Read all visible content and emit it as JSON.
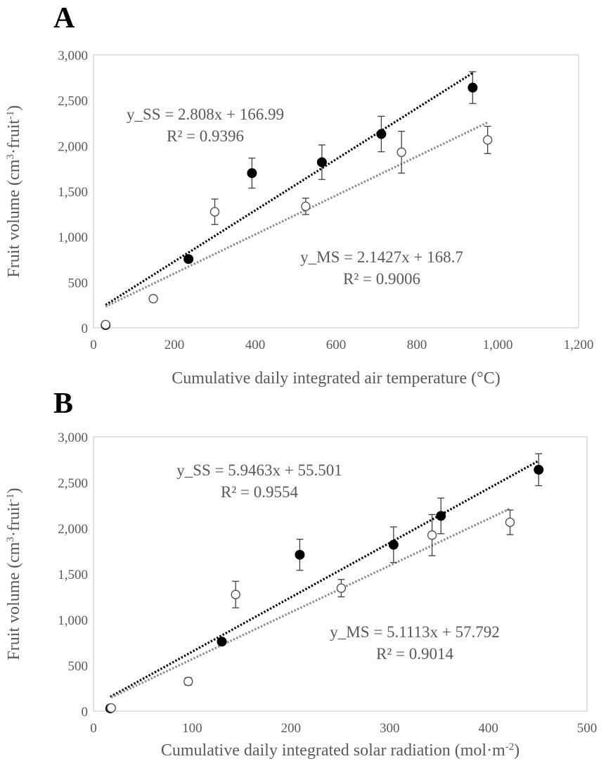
{
  "colors": {
    "ss": "#000000",
    "ms": "#8c8c8c",
    "axis": "#d9d9d9",
    "text": "#595959"
  },
  "chart_data": [
    {
      "panel": "A",
      "type": "scatter",
      "xlabel": "Cumulative daily integrated air temperature (°C)",
      "ylabel_main": "Fruit volume (cm",
      "ylabel_sup1": "3",
      "ylabel_mid": "·fruit",
      "ylabel_sup2": "-1",
      "ylabel_end": ")",
      "xlim": [
        0,
        1200
      ],
      "ylim": [
        0,
        3000
      ],
      "xticks": [
        0,
        200,
        400,
        600,
        800,
        1000,
        1200
      ],
      "xtick_labels": [
        "0",
        "200",
        "400",
        "600",
        "800",
        "1,000",
        "1,200"
      ],
      "yticks": [
        0,
        500,
        1000,
        1500,
        2000,
        2500,
        3000
      ],
      "ytick_labels": [
        "0",
        "500",
        "1,000",
        "1,500",
        "2,000",
        "2,500",
        "3,000"
      ],
      "grid": false,
      "series": [
        {
          "key": "ss",
          "marker": "filled",
          "points": [
            {
              "x": 30,
              "y": 30,
              "err": 15
            },
            {
              "x": 235,
              "y": 755,
              "err": 35
            },
            {
              "x": 392,
              "y": 1700,
              "err": 165
            },
            {
              "x": 565,
              "y": 1820,
              "err": 190
            },
            {
              "x": 712,
              "y": 2130,
              "err": 195
            },
            {
              "x": 938,
              "y": 2640,
              "err": 175
            }
          ],
          "trend": {
            "slope": 2.808,
            "intercept": 166.99,
            "x_from": 30,
            "x_to": 938
          },
          "equation": "y_SS = 2.808x + 166.99",
          "r2": "R² = 0.9396"
        },
        {
          "key": "ms",
          "marker": "open",
          "points": [
            {
              "x": 30,
              "y": 35,
              "err": 15
            },
            {
              "x": 148,
              "y": 320,
              "err": 30
            },
            {
              "x": 300,
              "y": 1275,
              "err": 140
            },
            {
              "x": 525,
              "y": 1335,
              "err": 90
            },
            {
              "x": 762,
              "y": 1930,
              "err": 230
            },
            {
              "x": 975,
              "y": 2065,
              "err": 150
            }
          ],
          "trend": {
            "slope": 2.1427,
            "intercept": 168.7,
            "x_from": 30,
            "x_to": 975
          },
          "equation": "y_MS = 2.1427x + 168.7",
          "r2": "R² = 0.9006"
        }
      ]
    },
    {
      "panel": "B",
      "type": "scatter",
      "xlabel": "Cumulative daily integrated solar radiation (mol·m",
      "xlabel_sup": "-2",
      "xlabel_end": ")",
      "ylabel_main": "Fruit volume (cm",
      "ylabel_sup1": "3",
      "ylabel_mid": "·fruit",
      "ylabel_sup2": "-1",
      "ylabel_end": ")",
      "xlim": [
        0,
        500
      ],
      "ylim": [
        0,
        3000
      ],
      "xticks": [
        0,
        100,
        200,
        300,
        400,
        500
      ],
      "xtick_labels": [
        "0",
        "100",
        "200",
        "300",
        "400",
        "500"
      ],
      "yticks": [
        0,
        500,
        1000,
        1500,
        2000,
        2500,
        3000
      ],
      "ytick_labels": [
        "0",
        "500",
        "1,000",
        "1,500",
        "2,000",
        "2,500",
        "3,000"
      ],
      "grid": false,
      "series": [
        {
          "key": "ss",
          "marker": "filled",
          "points": [
            {
              "x": 17,
              "y": 30,
              "err": 15
            },
            {
              "x": 130,
              "y": 760,
              "err": 30
            },
            {
              "x": 209,
              "y": 1710,
              "err": 170
            },
            {
              "x": 304,
              "y": 1820,
              "err": 195
            },
            {
              "x": 352,
              "y": 2135,
              "err": 195
            },
            {
              "x": 451,
              "y": 2640,
              "err": 175
            }
          ],
          "trend": {
            "slope": 5.9463,
            "intercept": 55.501,
            "x_from": 17,
            "x_to": 451
          },
          "equation": "y_SS = 5.9463x + 55.501",
          "r2": "R² = 0.9554"
        },
        {
          "key": "ms",
          "marker": "open",
          "points": [
            {
              "x": 18,
              "y": 35,
              "err": 15
            },
            {
              "x": 96,
              "y": 325,
              "err": 40
            },
            {
              "x": 144,
              "y": 1275,
              "err": 145
            },
            {
              "x": 251,
              "y": 1345,
              "err": 95
            },
            {
              "x": 343,
              "y": 1925,
              "err": 225
            },
            {
              "x": 422,
              "y": 2065,
              "err": 135
            }
          ],
          "trend": {
            "slope": 5.1113,
            "intercept": 57.792,
            "x_from": 18,
            "x_to": 422
          },
          "equation": "y_MS = 5.1113x + 57.792",
          "r2": "R² = 0.9014"
        }
      ]
    }
  ]
}
